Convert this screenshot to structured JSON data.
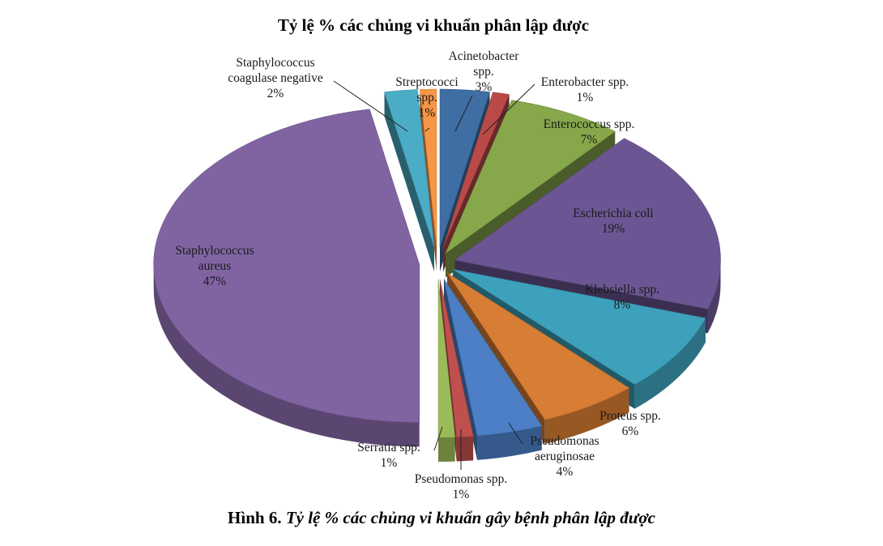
{
  "chart_data": {
    "type": "pie",
    "title": "Tỷ lệ % các chủng vi khuẩn phân lập được",
    "slices": [
      {
        "label": [
          "Acinetobacter",
          "spp."
        ],
        "value": 3,
        "value_label": "3%",
        "color": "#3e6ea3"
      },
      {
        "label": [
          "Enterobacter    spp."
        ],
        "value": 1,
        "value_label": "1%",
        "color": "#b94a48"
      },
      {
        "label": [
          "Enterococcus    spp."
        ],
        "value": 7,
        "value_label": "7%",
        "color": "#86a84a"
      },
      {
        "label": [
          "Escherichia    coli"
        ],
        "value": 19,
        "value_label": "19%",
        "color": "#6b5693"
      },
      {
        "label": [
          "Klebsiella spp."
        ],
        "value": 8,
        "value_label": "8%",
        "color": "#3da1bb"
      },
      {
        "label": [
          "Proteus    spp."
        ],
        "value": 6,
        "value_label": "6%",
        "color": "#d77d34"
      },
      {
        "label": [
          "Pseudomonas",
          "aeruginosae"
        ],
        "value": 4,
        "value_label": "4%",
        "color": "#4c7fc5"
      },
      {
        "label": [
          "Pseudomonas spp."
        ],
        "value": 1,
        "value_label": "1%",
        "color": "#c0504d"
      },
      {
        "label": [
          "Serratia    spp."
        ],
        "value": 1,
        "value_label": "1%",
        "color": "#9bbb59"
      },
      {
        "label": [
          "Staphylococcus",
          "aureus"
        ],
        "value": 47,
        "value_label": "47%",
        "color": "#8064a2"
      },
      {
        "label": [
          "Staphylococcus",
          "coagulase negative"
        ],
        "value": 2,
        "value_label": "2%",
        "color": "#4bacc6"
      },
      {
        "label": [
          "Streptococci",
          "spp."
        ],
        "value": 1,
        "value_label": "1%",
        "color": "#f79646"
      }
    ],
    "style": "3d-exploded-pie"
  },
  "caption": {
    "lead": "Hình 6.",
    "text": "Tỷ lệ % các chủng vi khuẩn gây bệnh phân lập được"
  }
}
